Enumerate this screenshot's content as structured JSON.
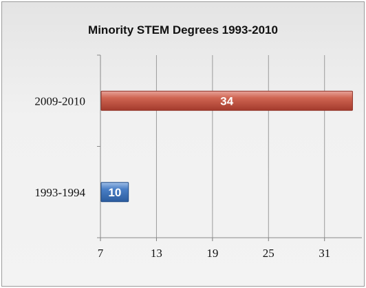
{
  "chart_data": {
    "type": "bar",
    "orientation": "horizontal",
    "title": "Minority STEM Degrees 1993-2010",
    "categories": [
      "2009-2010",
      "1993-1994"
    ],
    "values": [
      34,
      10
    ],
    "data_labels": [
      "34",
      "10"
    ],
    "xlim": [
      7,
      35
    ],
    "xticks": [
      7,
      13,
      19,
      25,
      31
    ],
    "xtick_labels": [
      "7",
      "13",
      "19",
      "25",
      "31"
    ],
    "grid": "vertical",
    "bar_colors": [
      "#c0504d",
      "#4f81bd"
    ],
    "legend": "none"
  }
}
